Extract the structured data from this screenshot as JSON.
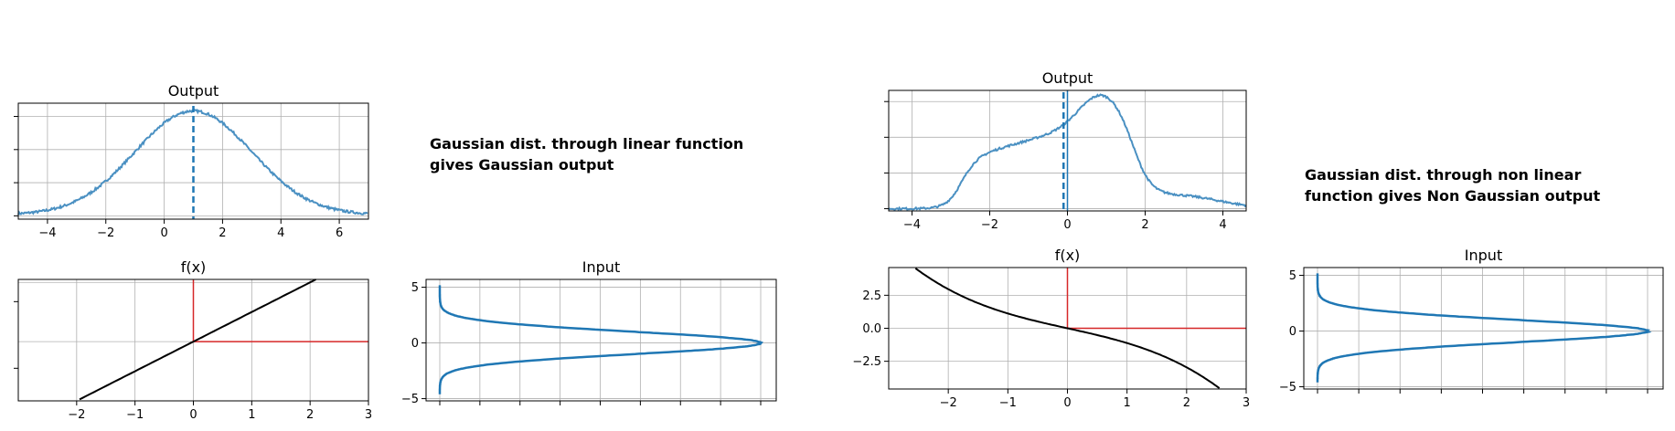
{
  "annotations": [
    "Gaussian dist. through linear function\ngives Gaussian output",
    "Gaussian dist. through non linear\nfunction gives Non Gaussian output"
  ],
  "colors": {
    "series": "#1f77b4",
    "output_line": "#4a90c2",
    "guide": "#d62728",
    "function": "#000000",
    "grid": "#b0b0b0"
  },
  "chart_data": [
    {
      "type": "line",
      "title": "Output",
      "xlim": [
        -5,
        7
      ],
      "ylim": [
        0,
        0.105
      ],
      "xticks": [
        "−4",
        "−2",
        "0",
        "2",
        "4",
        "6"
      ],
      "show_yticklabels": false,
      "grid": true,
      "series": [
        {
          "distribution": "gaussian",
          "mean": 1,
          "sd": 2
        }
      ],
      "mean_marker": {
        "x": 1,
        "style": "dashed"
      }
    },
    {
      "type": "line",
      "title": "f(x)",
      "xlim": [
        -3,
        3
      ],
      "ylim": [
        -3.0,
        5.2
      ],
      "xticks": [
        "−2",
        "−1",
        "0",
        "1",
        "2",
        "3"
      ],
      "show_yticklabels": false,
      "grid": true,
      "function": "y = 2x + 1",
      "guides": {
        "x": 0,
        "y": 1
      }
    },
    {
      "type": "line",
      "title": "Input",
      "orientation": "horizontal density",
      "ylim": [
        -5.2,
        5.7
      ],
      "yticks": [
        "5",
        "0",
        "−5"
      ],
      "show_xticklabels": false,
      "grid": true,
      "series": [
        {
          "distribution": "gaussian",
          "mean": 0,
          "sd": 1,
          "range": [
            -4.6,
            5.2
          ]
        }
      ]
    },
    {
      "type": "line",
      "title": "Output",
      "xlim": [
        -4.6,
        4.6
      ],
      "ylim": [
        0,
        1.08
      ],
      "xticks": [
        "−4",
        "−2",
        "0",
        "2",
        "4"
      ],
      "show_yticklabels": false,
      "grid": true,
      "series": [
        {
          "distribution": "skewed"
        }
      ],
      "mean_marker": {
        "x": -0.1,
        "style": "dashed"
      },
      "reference_line": {
        "x": 0
      }
    },
    {
      "type": "line",
      "title": "f(x)",
      "xlim": [
        -3,
        3
      ],
      "ylim": [
        -4.6,
        4.6
      ],
      "xticks": [
        "−2",
        "−1",
        "0",
        "1",
        "2",
        "3"
      ],
      "yticks": [
        "2.5",
        "0.0",
        "−2.5"
      ],
      "grid": true,
      "function": "y = -x - 0.12x^3",
      "guides": {
        "x": 0,
        "y": 0
      }
    },
    {
      "type": "line",
      "title": "Input",
      "orientation": "horizontal density",
      "ylim": [
        -5.2,
        5.7
      ],
      "yticks": [
        "5",
        "0",
        "−5"
      ],
      "show_xticklabels": false,
      "grid": true,
      "series": [
        {
          "distribution": "gaussian",
          "mean": 0,
          "sd": 1,
          "range": [
            -4.6,
            5.2
          ]
        }
      ]
    }
  ]
}
